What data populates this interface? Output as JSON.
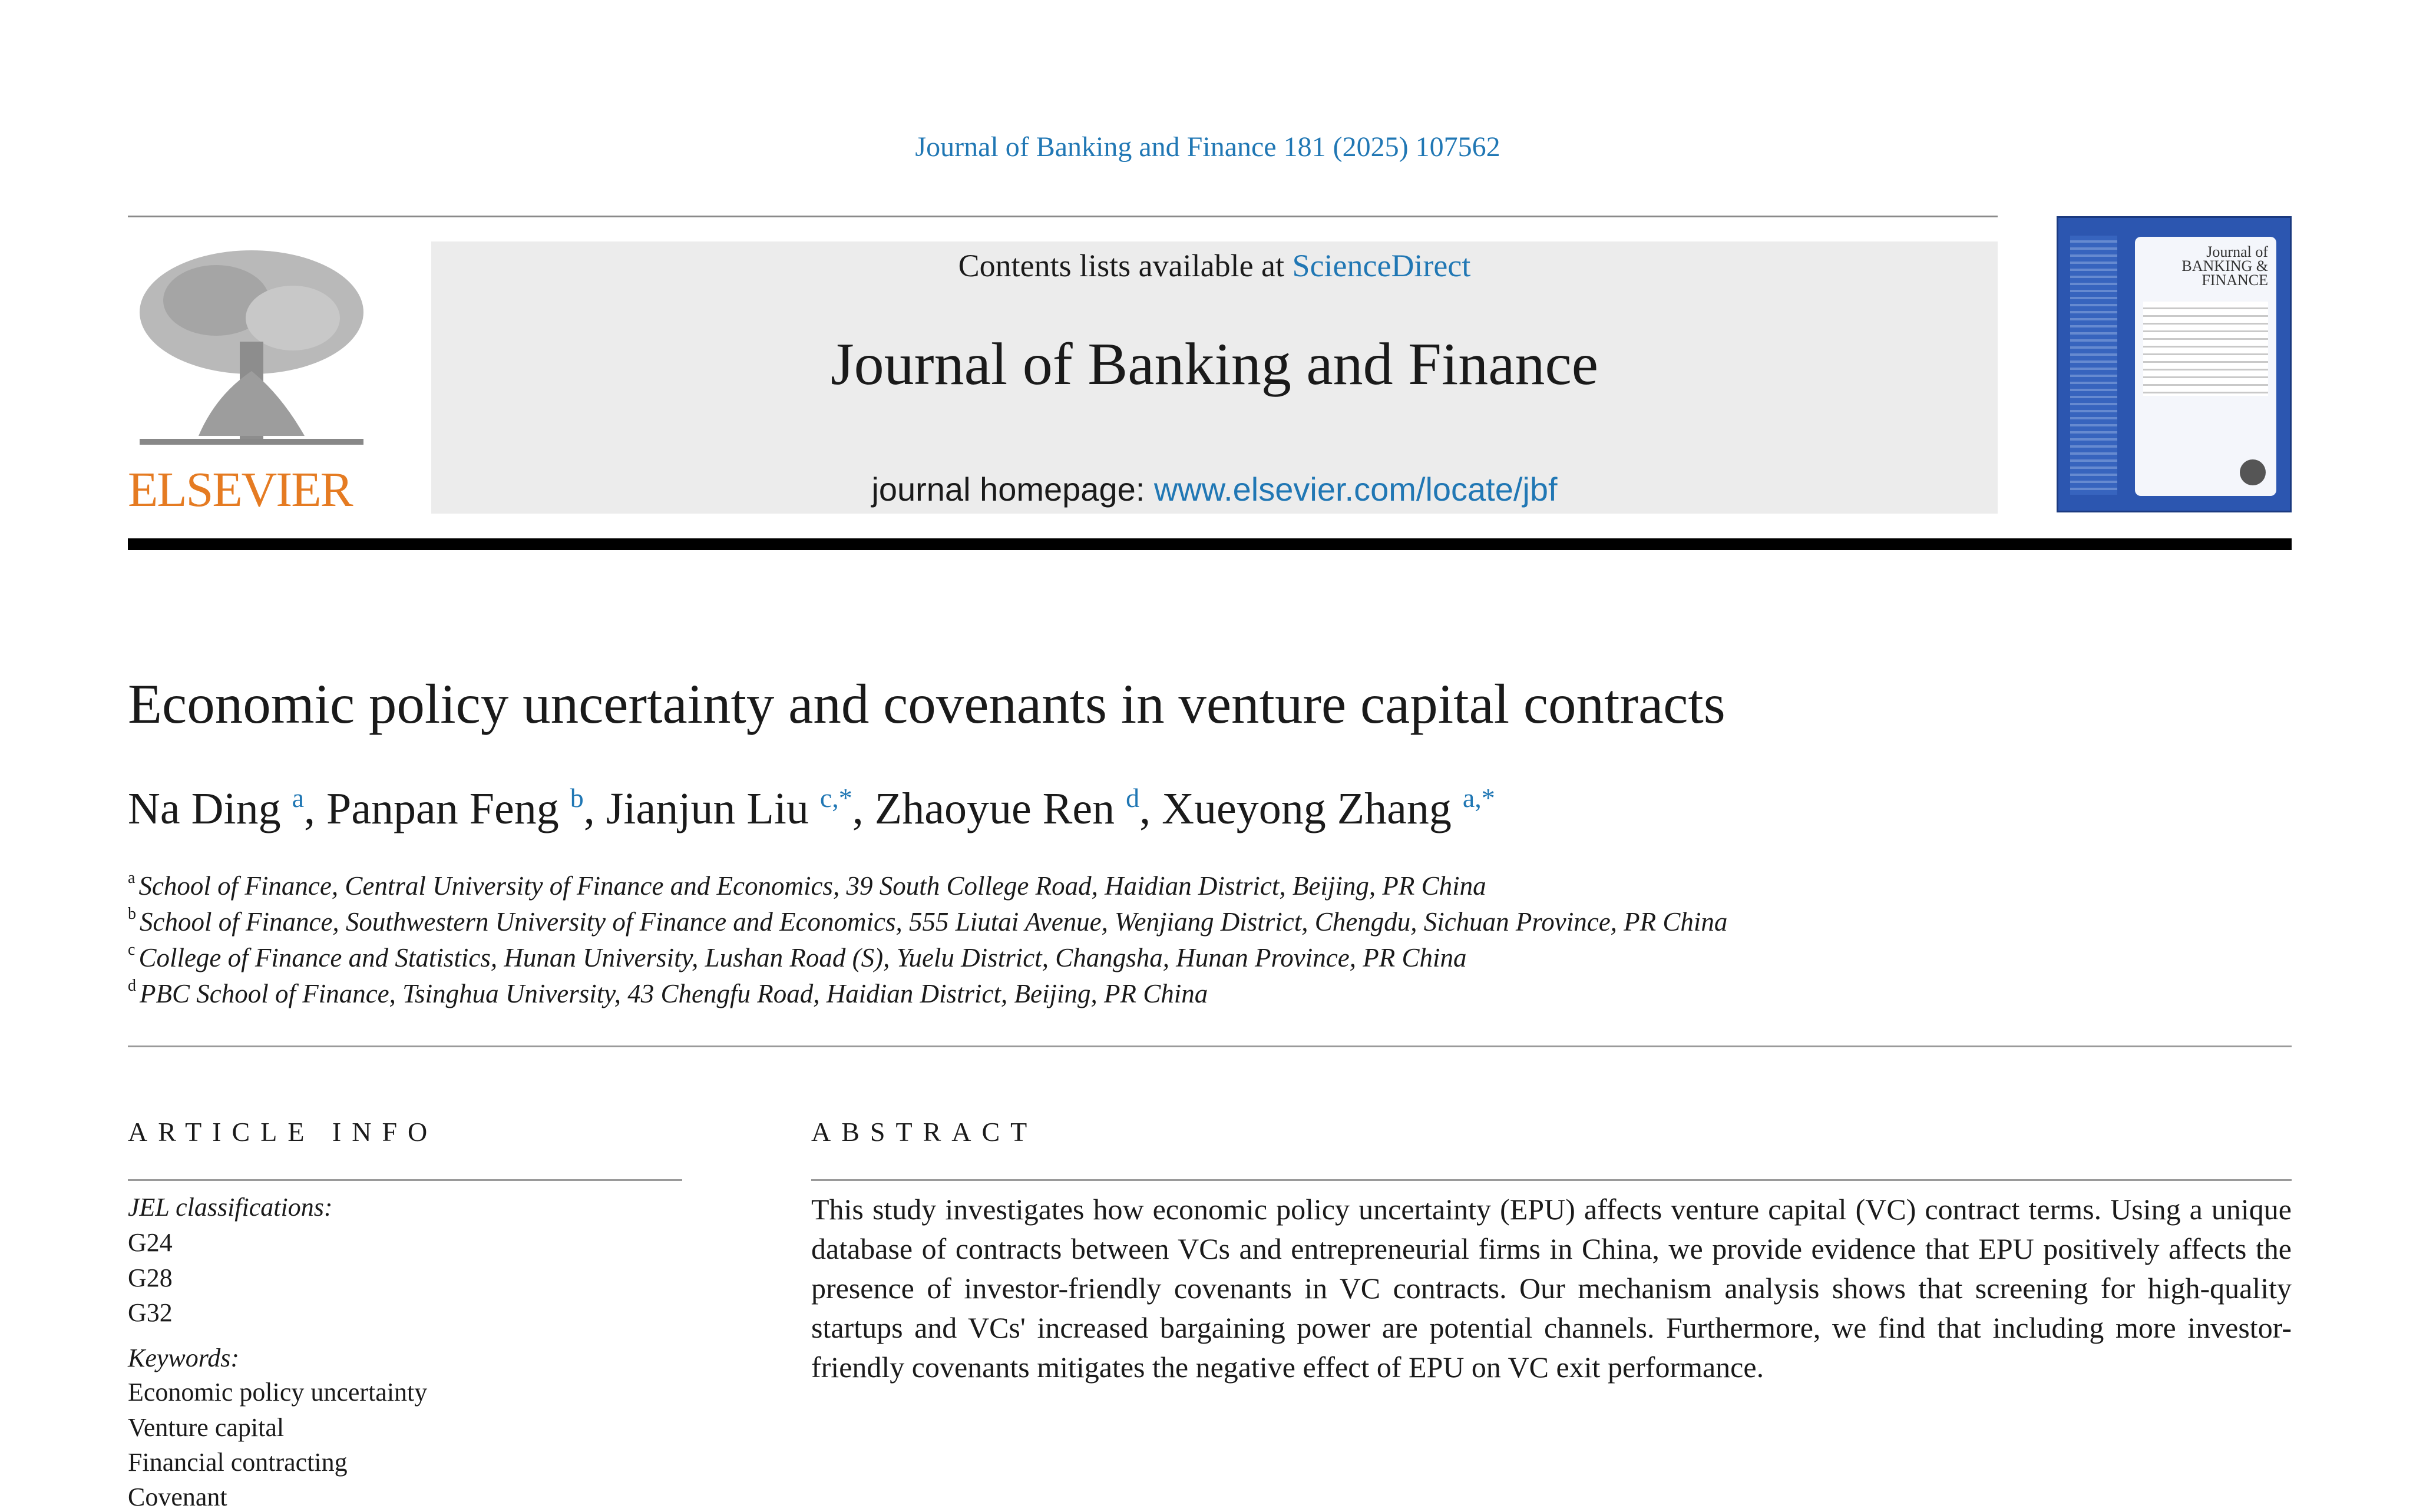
{
  "header": {
    "citation": "Journal of Banking and Finance 181 (2025) 107562",
    "contents_prefix": "Contents lists available at ",
    "contents_link": "ScienceDirect",
    "journal_title": "Journal of Banking and Finance",
    "homepage_prefix": "journal homepage: ",
    "homepage_link": "www.elsevier.com/locate/jbf",
    "publisher_logo": "ELSEVIER",
    "cover_title": "Journal of BANKING & FINANCE"
  },
  "article": {
    "title": "Economic policy uncertainty and covenants in venture capital contracts",
    "authors": [
      {
        "name": "Na Ding",
        "sup": "a"
      },
      {
        "name": "Panpan Feng",
        "sup": "b"
      },
      {
        "name": "Jianjun Liu",
        "sup": "c,*"
      },
      {
        "name": "Zhaoyue Ren",
        "sup": "d"
      },
      {
        "name": "Xueyong Zhang",
        "sup": "a,*"
      }
    ],
    "affiliations": [
      {
        "mark": "a",
        "text": "School of Finance, Central University of Finance and Economics, 39 South College Road, Haidian District, Beijing, PR China"
      },
      {
        "mark": "b",
        "text": "School of Finance, Southwestern University of Finance and Economics, 555 Liutai Avenue, Wenjiang District, Chengdu, Sichuan Province, PR China"
      },
      {
        "mark": "c",
        "text": "College of Finance and Statistics, Hunan University, Lushan Road (S), Yuelu District, Changsha, Hunan Province, PR China"
      },
      {
        "mark": "d",
        "text": "PBC School of Finance, Tsinghua University, 43 Chengfu Road, Haidian District, Beijing, PR China"
      }
    ]
  },
  "article_info": {
    "heading": "ARTICLE INFO",
    "jel_label": "JEL classifications:",
    "jel_codes": [
      "G24",
      "G28",
      "G32"
    ],
    "keywords_label": "Keywords:",
    "keywords": [
      "Economic policy uncertainty",
      "Venture capital",
      "Financial contracting",
      "Covenant"
    ]
  },
  "abstract": {
    "heading": "ABSTRACT",
    "text": "This study investigates how economic policy uncertainty (EPU) affects venture capital (VC) contract terms. Using a unique database of contracts between VCs and entrepreneurial firms in China, we provide evidence that EPU positively affects the presence of investor-friendly covenants in VC contracts. Our mechanism analysis shows that screening for high-quality startups and VCs' increased bargaining power are potential channels. Furthermore, we find that including more investor-friendly covenants mitigates the negative effect of EPU on VC exit performance."
  },
  "colors": {
    "link": "#2077b4",
    "elsevier": "#e57b22",
    "header_box": "#ececec"
  }
}
